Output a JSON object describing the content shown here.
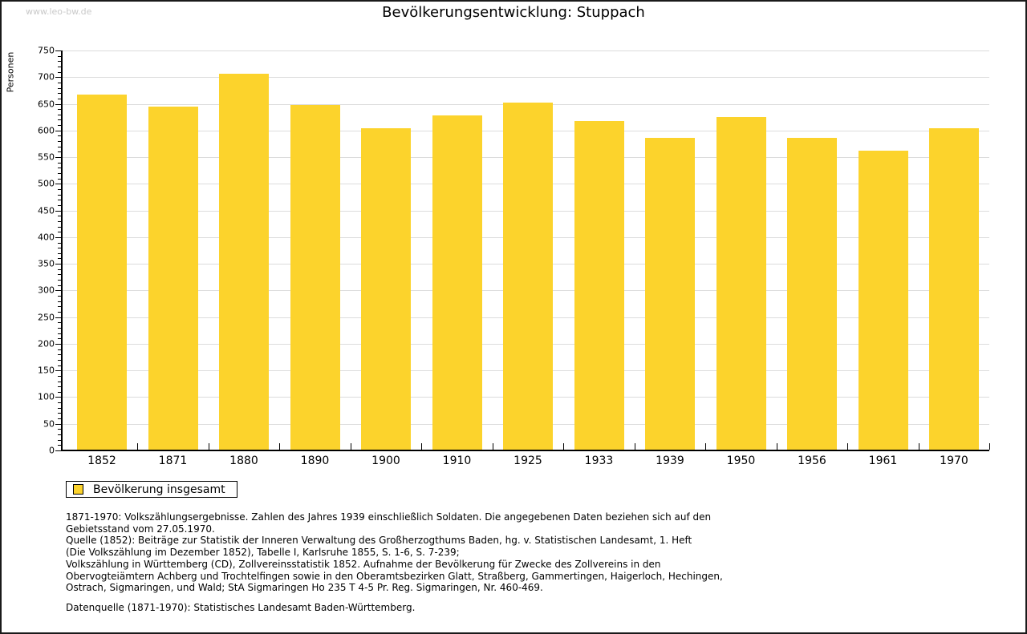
{
  "page": {
    "watermark": "www.leo-bw.de"
  },
  "chart_data": {
    "type": "bar",
    "title": "Bevölkerungsentwicklung: Stuppach",
    "xlabel": "",
    "ylabel": "Personen",
    "categories": [
      "1852",
      "1871",
      "1880",
      "1890",
      "1900",
      "1910",
      "1925",
      "1933",
      "1939",
      "1950",
      "1956",
      "1961",
      "1970"
    ],
    "values": [
      668,
      645,
      707,
      648,
      604,
      628,
      652,
      617,
      586,
      626,
      586,
      562,
      604
    ],
    "series_name": "Bevölkerung insgesamt",
    "ylim": [
      0,
      750
    ],
    "ytick_step": 50,
    "minor_tick_step": 10,
    "grid": true,
    "legend_position": "bottom-left",
    "bar_color": "#FCD32C",
    "grid_color": "#DCDCDC",
    "axis_color": "#000000"
  },
  "legend": {
    "label": "Bevölkerung insgesamt"
  },
  "footnotes": {
    "lines": [
      "1871-1970: Volkszählungsergebnisse. Zahlen des Jahres 1939 einschließlich Soldaten. Die angegebenen Daten beziehen sich auf den",
      "Gebietsstand vom 27.05.1970.",
      "Quelle (1852): Beiträge zur Statistik der Inneren Verwaltung des Großherzogthums Baden, hg. v. Statistischen Landesamt, 1. Heft",
      "(Die Volkszählung im Dezember 1852), Tabelle I, Karlsruhe 1855, S. 1-6, S. 7-239;",
      "Volkszählung in Württemberg (CD), Zollvereinsstatistik 1852. Aufnahme der Bevölkerung für Zwecke des Zollvereins in den",
      "Obervogteiämtern Achberg und Trochtelfingen sowie in den Oberamtsbezirken Glatt, Straßberg, Gammertingen, Haigerloch, Hechingen,",
      "Ostrach, Sigmaringen, und Wald; StA Sigmaringen Ho 235 T 4-5 Pr. Reg. Sigmaringen, Nr. 460-469."
    ],
    "datasource": "Datenquelle (1871-1970): Statistisches Landesamt Baden-Württemberg."
  }
}
